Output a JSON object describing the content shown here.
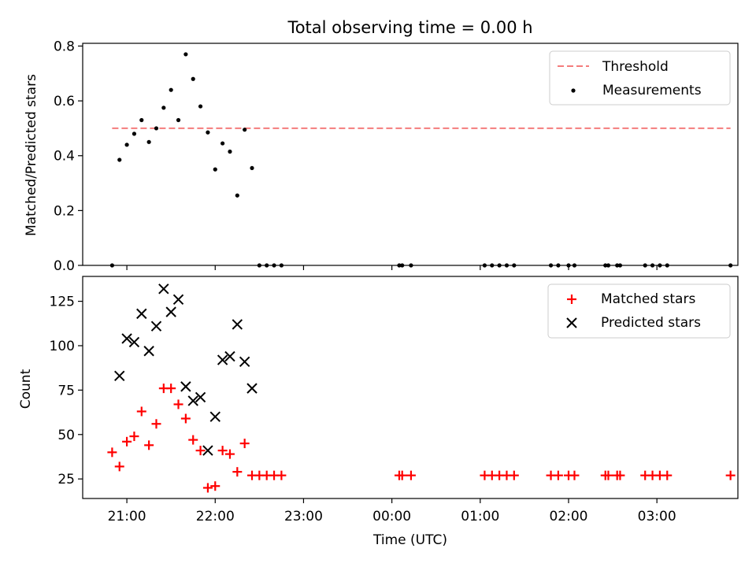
{
  "chart_data": [
    {
      "type": "scatter",
      "title": "Total observing time = 0.00 h",
      "xlabel": "",
      "ylabel": "Matched/Predicted stars",
      "xlim": [
        "20:30",
        "03:55"
      ],
      "ylim": [
        0,
        0.81
      ],
      "x_ticks": [
        "21:00",
        "22:00",
        "23:00",
        "00:00",
        "01:00",
        "02:00",
        "03:00"
      ],
      "y_ticks": [
        "0.0",
        "0.2",
        "0.4",
        "0.6",
        "0.8"
      ],
      "legend_position": "upper right",
      "grid": false,
      "threshold": {
        "name": "Threshold",
        "value": 0.5,
        "x_range": [
          "20:50",
          "03:50"
        ],
        "color": "#f47c7c"
      },
      "series": [
        {
          "name": "Measurements",
          "marker": "dot",
          "color": "#000000",
          "points": [
            {
              "x": "20:50",
              "y": 0.0
            },
            {
              "x": "20:55",
              "y": 0.385
            },
            {
              "x": "21:00",
              "y": 0.44
            },
            {
              "x": "21:05",
              "y": 0.48
            },
            {
              "x": "21:10",
              "y": 0.53
            },
            {
              "x": "21:15",
              "y": 0.45
            },
            {
              "x": "21:20",
              "y": 0.5
            },
            {
              "x": "21:25",
              "y": 0.575
            },
            {
              "x": "21:30",
              "y": 0.64
            },
            {
              "x": "21:35",
              "y": 0.53
            },
            {
              "x": "21:40",
              "y": 0.77
            },
            {
              "x": "21:45",
              "y": 0.68
            },
            {
              "x": "21:50",
              "y": 0.58
            },
            {
              "x": "21:55",
              "y": 0.485
            },
            {
              "x": "22:00",
              "y": 0.35
            },
            {
              "x": "22:05",
              "y": 0.445
            },
            {
              "x": "22:10",
              "y": 0.415
            },
            {
              "x": "22:15",
              "y": 0.255
            },
            {
              "x": "22:20",
              "y": 0.495
            },
            {
              "x": "22:25",
              "y": 0.355
            },
            {
              "x": "22:30",
              "y": 0.0
            },
            {
              "x": "22:35",
              "y": 0.0
            },
            {
              "x": "22:40",
              "y": 0.0
            },
            {
              "x": "22:45",
              "y": 0.0
            },
            {
              "x": "00:05",
              "y": 0.0
            },
            {
              "x": "00:07",
              "y": 0.0
            },
            {
              "x": "00:13",
              "y": 0.0
            },
            {
              "x": "01:03",
              "y": 0.0
            },
            {
              "x": "01:08",
              "y": 0.0
            },
            {
              "x": "01:13",
              "y": 0.0
            },
            {
              "x": "01:18",
              "y": 0.0
            },
            {
              "x": "01:23",
              "y": 0.0
            },
            {
              "x": "01:48",
              "y": 0.0
            },
            {
              "x": "01:53",
              "y": 0.0
            },
            {
              "x": "02:00",
              "y": 0.0
            },
            {
              "x": "02:04",
              "y": 0.0
            },
            {
              "x": "02:25",
              "y": 0.0
            },
            {
              "x": "02:27",
              "y": 0.0
            },
            {
              "x": "02:33",
              "y": 0.0
            },
            {
              "x": "02:35",
              "y": 0.0
            },
            {
              "x": "02:52",
              "y": 0.0
            },
            {
              "x": "02:57",
              "y": 0.0
            },
            {
              "x": "03:02",
              "y": 0.0
            },
            {
              "x": "03:07",
              "y": 0.0
            },
            {
              "x": "03:50",
              "y": 0.0
            }
          ]
        }
      ]
    },
    {
      "type": "scatter",
      "title": "",
      "xlabel": "Time (UTC)",
      "ylabel": "Count",
      "xlim": [
        "20:30",
        "03:55"
      ],
      "ylim": [
        14,
        139
      ],
      "x_ticks": [
        "21:00",
        "22:00",
        "23:00",
        "00:00",
        "01:00",
        "02:00",
        "03:00"
      ],
      "y_ticks": [
        "25",
        "50",
        "75",
        "100",
        "125"
      ],
      "legend_position": "upper right",
      "grid": false,
      "series": [
        {
          "name": "Matched stars",
          "marker": "plus",
          "color": "#ff0000",
          "points": [
            {
              "x": "20:50",
              "y": 40
            },
            {
              "x": "20:55",
              "y": 32
            },
            {
              "x": "21:00",
              "y": 46
            },
            {
              "x": "21:05",
              "y": 49
            },
            {
              "x": "21:10",
              "y": 63
            },
            {
              "x": "21:15",
              "y": 44
            },
            {
              "x": "21:20",
              "y": 56
            },
            {
              "x": "21:25",
              "y": 76
            },
            {
              "x": "21:30",
              "y": 76
            },
            {
              "x": "21:35",
              "y": 67
            },
            {
              "x": "21:40",
              "y": 59
            },
            {
              "x": "21:45",
              "y": 47
            },
            {
              "x": "21:50",
              "y": 41
            },
            {
              "x": "21:55",
              "y": 20
            },
            {
              "x": "22:00",
              "y": 21
            },
            {
              "x": "22:05",
              "y": 41
            },
            {
              "x": "22:10",
              "y": 39
            },
            {
              "x": "22:15",
              "y": 29
            },
            {
              "x": "22:20",
              "y": 45
            },
            {
              "x": "22:25",
              "y": 27
            },
            {
              "x": "22:30",
              "y": 27
            },
            {
              "x": "22:35",
              "y": 27
            },
            {
              "x": "22:40",
              "y": 27
            },
            {
              "x": "22:45",
              "y": 27
            },
            {
              "x": "00:05",
              "y": 27
            },
            {
              "x": "00:07",
              "y": 27
            },
            {
              "x": "00:13",
              "y": 27
            },
            {
              "x": "01:03",
              "y": 27
            },
            {
              "x": "01:08",
              "y": 27
            },
            {
              "x": "01:13",
              "y": 27
            },
            {
              "x": "01:18",
              "y": 27
            },
            {
              "x": "01:23",
              "y": 27
            },
            {
              "x": "01:48",
              "y": 27
            },
            {
              "x": "01:53",
              "y": 27
            },
            {
              "x": "02:00",
              "y": 27
            },
            {
              "x": "02:04",
              "y": 27
            },
            {
              "x": "02:25",
              "y": 27
            },
            {
              "x": "02:27",
              "y": 27
            },
            {
              "x": "02:33",
              "y": 27
            },
            {
              "x": "02:35",
              "y": 27
            },
            {
              "x": "02:52",
              "y": 27
            },
            {
              "x": "02:57",
              "y": 27
            },
            {
              "x": "03:02",
              "y": 27
            },
            {
              "x": "03:07",
              "y": 27
            },
            {
              "x": "03:50",
              "y": 27
            }
          ]
        },
        {
          "name": "Predicted stars",
          "marker": "x",
          "color": "#000000",
          "points": [
            {
              "x": "20:55",
              "y": 83
            },
            {
              "x": "21:00",
              "y": 104
            },
            {
              "x": "21:05",
              "y": 102
            },
            {
              "x": "21:10",
              "y": 118
            },
            {
              "x": "21:15",
              "y": 97
            },
            {
              "x": "21:20",
              "y": 111
            },
            {
              "x": "21:25",
              "y": 132
            },
            {
              "x": "21:30",
              "y": 119
            },
            {
              "x": "21:35",
              "y": 126
            },
            {
              "x": "21:40",
              "y": 77
            },
            {
              "x": "21:45",
              "y": 69
            },
            {
              "x": "21:50",
              "y": 71
            },
            {
              "x": "21:55",
              "y": 41
            },
            {
              "x": "22:00",
              "y": 60
            },
            {
              "x": "22:05",
              "y": 92
            },
            {
              "x": "22:10",
              "y": 94
            },
            {
              "x": "22:15",
              "y": 112
            },
            {
              "x": "22:20",
              "y": 91
            },
            {
              "x": "22:25",
              "y": 76
            }
          ]
        }
      ]
    }
  ]
}
